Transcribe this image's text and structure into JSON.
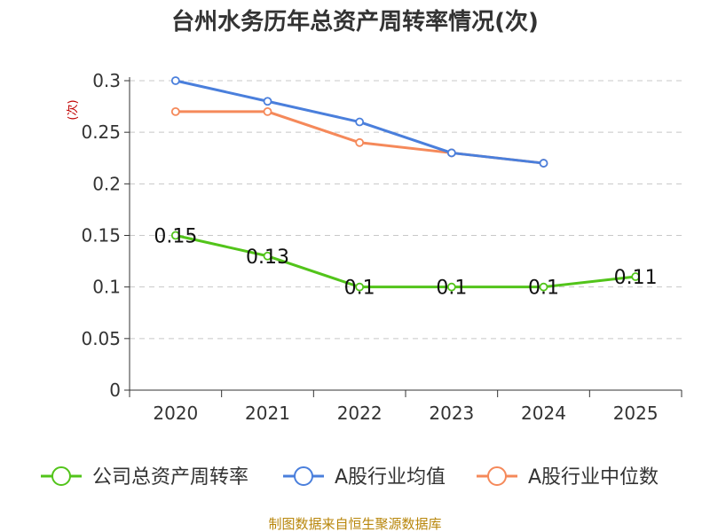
{
  "chart_data": {
    "type": "line",
    "title": "台州水务历年总资产周转率情况(次)",
    "ylabel": "(次)",
    "xlabel": "",
    "categories": [
      "2020",
      "2021",
      "2022",
      "2023",
      "2024",
      "2025"
    ],
    "y_ticks": [
      "0",
      "0.05",
      "0.1",
      "0.15",
      "0.2",
      "0.25",
      "0.3"
    ],
    "ylim": [
      0,
      0.3
    ],
    "grid": true,
    "legend_position": "bottom",
    "series": [
      {
        "name": "公司总资产周转率",
        "color": "#52c41a",
        "values": [
          0.15,
          0.13,
          0.1,
          0.1,
          0.1,
          0.11
        ],
        "labels": [
          "0.15",
          "0.13",
          "0.1",
          "0.1",
          "0.1",
          "0.11"
        ]
      },
      {
        "name": "A股行业均值",
        "color": "#4a7fdc",
        "values": [
          0.3,
          0.28,
          0.26,
          0.23,
          0.22,
          null
        ]
      },
      {
        "name": "A股行业中位数",
        "color": "#f5895a",
        "values": [
          0.27,
          0.27,
          0.24,
          0.23,
          0.22,
          null
        ]
      }
    ],
    "source": "制图数据来自恒生聚源数据库"
  }
}
